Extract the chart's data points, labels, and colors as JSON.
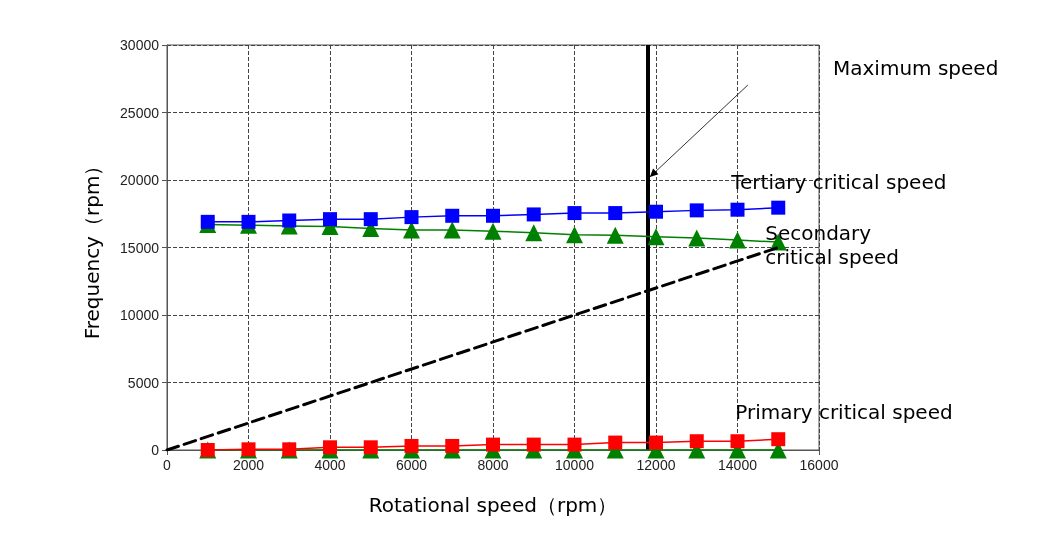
{
  "chart_data": {
    "type": "line",
    "xlabel": "Rotational speed（rpm）",
    "ylabel": "Frequency（rpm）",
    "x": [
      1000,
      2000,
      3000,
      4000,
      5000,
      6000,
      7000,
      8000,
      9000,
      10000,
      11000,
      12000,
      13000,
      14000,
      15000
    ],
    "series": [
      {
        "name": "Tertiary critical speed",
        "color": "#0000ff",
        "marker": "square",
        "values": [
          16900,
          16900,
          17000,
          17100,
          17100,
          17250,
          17350,
          17350,
          17450,
          17550,
          17550,
          17650,
          17750,
          17800,
          17950
        ]
      },
      {
        "name": "Secondary critical speed",
        "color": "#008000",
        "marker": "triangle",
        "values": [
          16700,
          16650,
          16600,
          16550,
          16400,
          16300,
          16300,
          16200,
          16100,
          15950,
          15900,
          15800,
          15700,
          15550,
          15400
        ]
      },
      {
        "name": "Primary critical speed",
        "color": "#ff0000",
        "marker": "square",
        "values": [
          0,
          50,
          50,
          200,
          200,
          300,
          300,
          400,
          400,
          400,
          550,
          550,
          650,
          650,
          800
        ]
      },
      {
        "color": "#008000",
        "marker": "triangle",
        "values": [
          0,
          0,
          0,
          0,
          0,
          0,
          0,
          0,
          0,
          0,
          0,
          0,
          0,
          0,
          0
        ]
      },
      {
        "color": "#000000",
        "marker": "none",
        "line_style": "dashed",
        "x": [
          0,
          15000
        ],
        "values": [
          0,
          15000
        ]
      }
    ],
    "ref_lines": [
      {
        "axis": "x",
        "value": 11800,
        "color": "#000000"
      }
    ],
    "annotations": [
      "Maximum speed"
    ],
    "xlim": [
      0,
      16000
    ],
    "xticks": [
      0,
      2000,
      4000,
      6000,
      8000,
      10000,
      12000,
      14000,
      16000
    ],
    "ylim": [
      0,
      30000
    ],
    "yticks": [
      0,
      5000,
      10000,
      15000,
      20000,
      25000,
      30000
    ],
    "grid": true,
    "legend": false
  }
}
